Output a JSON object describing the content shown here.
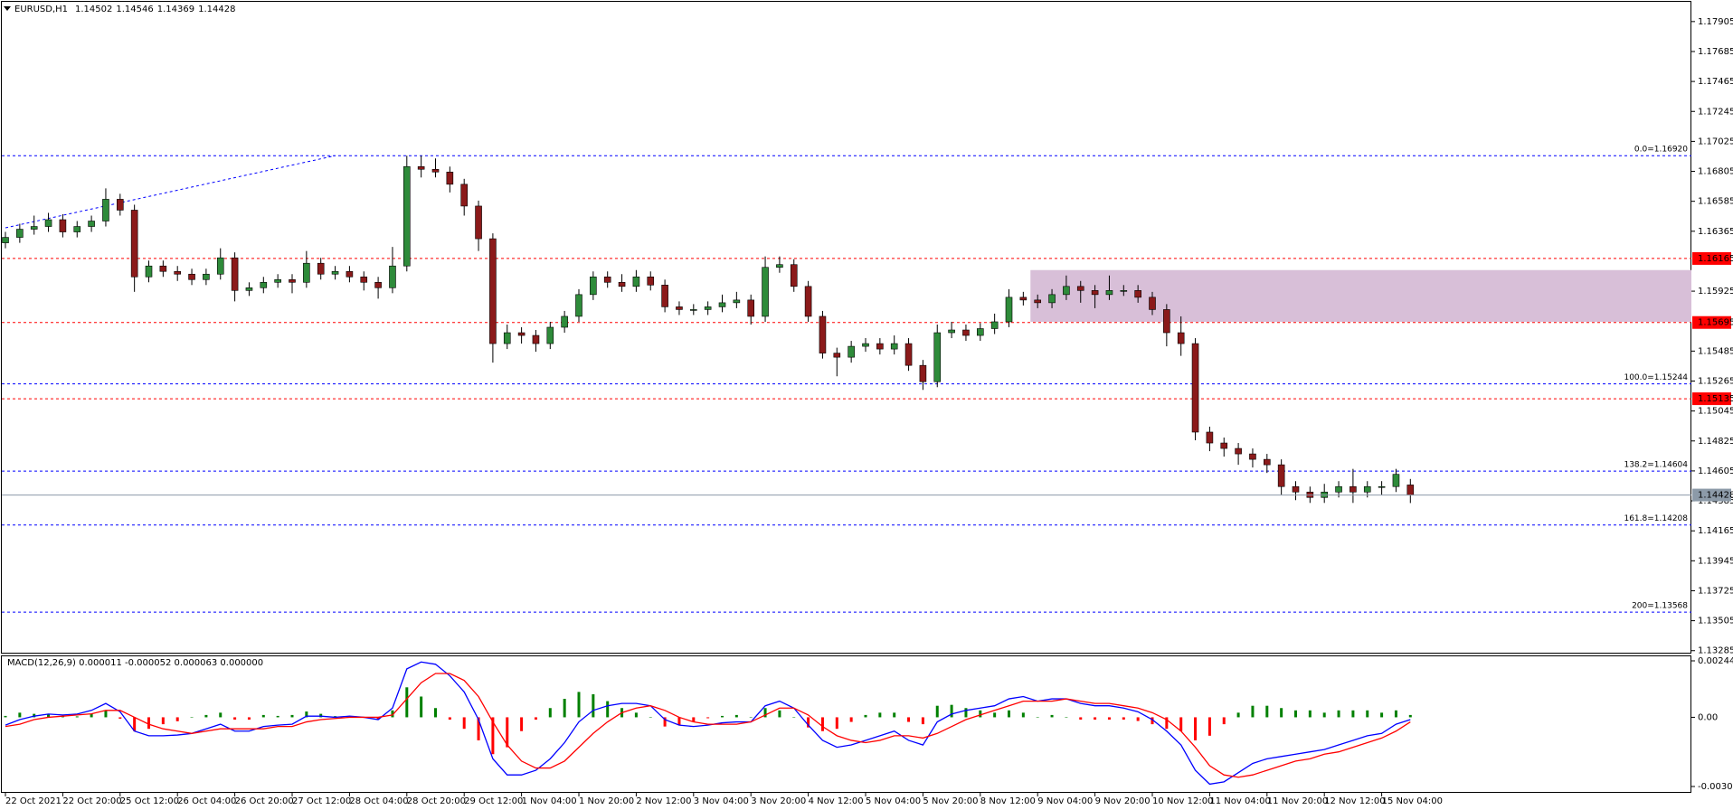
{
  "chart_data": [
    {
      "type": "candlestick",
      "symbol": "EURUSD,H1",
      "ylim": [
        1.1327,
        1.1805
      ],
      "yticks": [
        1.17905,
        1.17685,
        1.17465,
        1.17245,
        1.17025,
        1.16805,
        1.16585,
        1.16365,
        1.15925,
        1.15485,
        1.15265,
        1.15045,
        1.14825,
        1.14605,
        1.14385,
        1.14165,
        1.13945,
        1.13725,
        1.13505,
        1.13285
      ],
      "categories": [
        "22 Oct 2021",
        null,
        null,
        null,
        "22 Oct 20:00",
        null,
        null,
        null,
        "25 Oct 12:00",
        null,
        null,
        null,
        "26 Oct 04:00",
        null,
        null,
        null,
        "26 Oct 20:00",
        null,
        null,
        null,
        "27 Oct 12:00",
        null,
        null,
        null,
        "28 Oct 04:00",
        null,
        null,
        null,
        "28 Oct 20:00",
        null,
        null,
        null,
        "29 Oct 12:00",
        null,
        null,
        null,
        "1 Nov 04:00",
        null,
        null,
        null,
        "1 Nov 20:00",
        null,
        null,
        null,
        "2 Nov 12:00",
        null,
        null,
        null,
        "3 Nov 04:00",
        null,
        null,
        null,
        "3 Nov 20:00",
        null,
        null,
        null,
        "4 Nov 12:00",
        null,
        null,
        null,
        "5 Nov 04:00",
        null,
        null,
        null,
        "5 Nov 20:00",
        null,
        null,
        null,
        "8 Nov 12:00",
        null,
        null,
        null,
        "9 Nov 04:00",
        null,
        null,
        null,
        "9 Nov 20:00",
        null,
        null,
        null,
        "10 Nov 12:00",
        null,
        null,
        null,
        "11 Nov 04:00",
        null,
        null,
        null,
        "11 Nov 20:00",
        null,
        null,
        null,
        "12 Nov 12:00",
        null,
        null,
        null,
        "15 Nov 04:00",
        null,
        null
      ],
      "up_color": "#2e8b3a",
      "down_color": "#8b1a1a",
      "candles": [
        [
          1.1628,
          1.1636,
          1.1624,
          1.1632
        ],
        [
          1.1632,
          1.1642,
          1.1628,
          1.1638
        ],
        [
          1.1638,
          1.1648,
          1.1634,
          1.164
        ],
        [
          1.164,
          1.165,
          1.1636,
          1.1645
        ],
        [
          1.1645,
          1.1649,
          1.1632,
          1.1636
        ],
        [
          1.1636,
          1.1644,
          1.1632,
          1.164
        ],
        [
          1.164,
          1.1648,
          1.1636,
          1.1644
        ],
        [
          1.1644,
          1.1668,
          1.164,
          1.166
        ],
        [
          1.166,
          1.1664,
          1.1648,
          1.1652
        ],
        [
          1.1652,
          1.1656,
          1.1592,
          1.1603
        ],
        [
          1.1603,
          1.1615,
          1.1599,
          1.1611
        ],
        [
          1.1611,
          1.1615,
          1.1603,
          1.1607
        ],
        [
          1.1607,
          1.1611,
          1.16,
          1.1605
        ],
        [
          1.1605,
          1.1609,
          1.1597,
          1.1601
        ],
        [
          1.1601,
          1.1609,
          1.1597,
          1.1605
        ],
        [
          1.1605,
          1.1624,
          1.1601,
          1.1617
        ],
        [
          1.1617,
          1.1621,
          1.1585,
          1.1593
        ],
        [
          1.1593,
          1.1599,
          1.1589,
          1.1595
        ],
        [
          1.1595,
          1.1603,
          1.1591,
          1.1599
        ],
        [
          1.1599,
          1.1605,
          1.1595,
          1.1601
        ],
        [
          1.1601,
          1.1605,
          1.1591,
          1.1599
        ],
        [
          1.1599,
          1.1622,
          1.1595,
          1.1613
        ],
        [
          1.1613,
          1.1617,
          1.1601,
          1.1605
        ],
        [
          1.1605,
          1.1611,
          1.1601,
          1.1607
        ],
        [
          1.1607,
          1.1611,
          1.1599,
          1.1603
        ],
        [
          1.1603,
          1.1607,
          1.1593,
          1.1599
        ],
        [
          1.1599,
          1.1603,
          1.1587,
          1.1595
        ],
        [
          1.1595,
          1.1625,
          1.1591,
          1.1611
        ],
        [
          1.1611,
          1.1692,
          1.1607,
          1.1684
        ],
        [
          1.1684,
          1.1692,
          1.1676,
          1.1682
        ],
        [
          1.1682,
          1.169,
          1.1676,
          1.168
        ],
        [
          1.168,
          1.1684,
          1.1665,
          1.1671
        ],
        [
          1.1671,
          1.1675,
          1.1648,
          1.1655
        ],
        [
          1.1655,
          1.1659,
          1.1622,
          1.1631
        ],
        [
          1.1631,
          1.1635,
          1.154,
          1.1554
        ],
        [
          1.1554,
          1.1568,
          1.155,
          1.1562
        ],
        [
          1.1562,
          1.1566,
          1.1554,
          1.156
        ],
        [
          1.156,
          1.1564,
          1.1548,
          1.1554
        ],
        [
          1.1554,
          1.157,
          1.155,
          1.1566
        ],
        [
          1.1566,
          1.1578,
          1.1562,
          1.1574
        ],
        [
          1.1574,
          1.1594,
          1.157,
          1.159
        ],
        [
          1.159,
          1.1607,
          1.1586,
          1.1603
        ],
        [
          1.1603,
          1.1607,
          1.1595,
          1.1599
        ],
        [
          1.1599,
          1.1605,
          1.1592,
          1.1596
        ],
        [
          1.1596,
          1.1608,
          1.1592,
          1.1603
        ],
        [
          1.1603,
          1.1607,
          1.1593,
          1.1597
        ],
        [
          1.1597,
          1.1601,
          1.1577,
          1.1581
        ],
        [
          1.1581,
          1.1585,
          1.1575,
          1.1579
        ],
        [
          1.1579,
          1.1583,
          1.1575,
          1.1579
        ],
        [
          1.1579,
          1.1585,
          1.1575,
          1.1581
        ],
        [
          1.1581,
          1.159,
          1.1577,
          1.1584
        ],
        [
          1.1584,
          1.1592,
          1.158,
          1.1586
        ],
        [
          1.1586,
          1.159,
          1.1568,
          1.1574
        ],
        [
          1.1574,
          1.1618,
          1.157,
          1.161
        ],
        [
          1.161,
          1.1618,
          1.1606,
          1.1612
        ],
        [
          1.1612,
          1.1616,
          1.1592,
          1.1596
        ],
        [
          1.1596,
          1.16,
          1.157,
          1.1574
        ],
        [
          1.1574,
          1.1578,
          1.1543,
          1.1547
        ],
        [
          1.1547,
          1.1551,
          1.153,
          1.1544
        ],
        [
          1.1544,
          1.1556,
          1.154,
          1.1552
        ],
        [
          1.1552,
          1.1558,
          1.1548,
          1.1554
        ],
        [
          1.1554,
          1.1558,
          1.1546,
          1.155
        ],
        [
          1.155,
          1.156,
          1.1546,
          1.1554
        ],
        [
          1.1554,
          1.1558,
          1.1534,
          1.1538
        ],
        [
          1.1538,
          1.1542,
          1.152,
          1.1526
        ],
        [
          1.1526,
          1.1568,
          1.1522,
          1.1562
        ],
        [
          1.1562,
          1.157,
          1.1558,
          1.1564
        ],
        [
          1.1564,
          1.1568,
          1.1556,
          1.156
        ],
        [
          1.156,
          1.1569,
          1.1556,
          1.1565
        ],
        [
          1.1565,
          1.1576,
          1.1561,
          1.157
        ],
        [
          1.157,
          1.1594,
          1.1566,
          1.1588
        ],
        [
          1.1588,
          1.1592,
          1.1582,
          1.1586
        ],
        [
          1.1586,
          1.159,
          1.158,
          1.1584
        ],
        [
          1.1584,
          1.1594,
          1.158,
          1.159
        ],
        [
          1.159,
          1.1604,
          1.1586,
          1.1596
        ],
        [
          1.1596,
          1.16,
          1.1584,
          1.1593
        ],
        [
          1.1593,
          1.1597,
          1.158,
          1.159
        ],
        [
          1.159,
          1.1604,
          1.1586,
          1.1593
        ],
        [
          1.1593,
          1.1597,
          1.1589,
          1.1593
        ],
        [
          1.1593,
          1.1597,
          1.1584,
          1.1588
        ],
        [
          1.1588,
          1.1592,
          1.1575,
          1.1579
        ],
        [
          1.1579,
          1.1583,
          1.1552,
          1.1562
        ],
        [
          1.1562,
          1.1574,
          1.1545,
          1.1554
        ],
        [
          1.1554,
          1.1558,
          1.1483,
          1.1489
        ],
        [
          1.1489,
          1.1493,
          1.1475,
          1.1481
        ],
        [
          1.1481,
          1.1485,
          1.1471,
          1.1477
        ],
        [
          1.1477,
          1.1481,
          1.1465,
          1.1473
        ],
        [
          1.1473,
          1.1477,
          1.1463,
          1.1469
        ],
        [
          1.1469,
          1.1473,
          1.1459,
          1.1465
        ],
        [
          1.1465,
          1.1469,
          1.1443,
          1.1449
        ],
        [
          1.1449,
          1.1453,
          1.1439,
          1.1445
        ],
        [
          1.1445,
          1.1449,
          1.1437,
          1.1441
        ],
        [
          1.1441,
          1.1451,
          1.1437,
          1.1445
        ],
        [
          1.1445,
          1.1453,
          1.1441,
          1.1449
        ],
        [
          1.1449,
          1.1462,
          1.1437,
          1.1445
        ],
        [
          1.1445,
          1.1453,
          1.1441,
          1.1449
        ],
        [
          1.1449,
          1.1453,
          1.1443,
          1.1449
        ],
        [
          1.1449,
          1.1462,
          1.1445,
          1.1458
        ],
        [
          1.14502,
          1.14546,
          1.14369,
          1.14428
        ]
      ],
      "fib_color": "#0000ff",
      "fib_levels": [
        {
          "value": 1.1692,
          "label": "0.0=1.16920"
        },
        {
          "value": 1.15244,
          "label": "100.0=1.15244"
        },
        {
          "value": 1.14604,
          "label": "138.2=1.14604"
        },
        {
          "value": 1.14208,
          "label": "161.8=1.14208"
        },
        {
          "value": 1.13568,
          "label": "200=1.13568"
        }
      ],
      "sr_color": "#ff0000",
      "sr_levels": [
        1.16165,
        1.15695,
        1.15135
      ],
      "current_color": "#8c9aa8",
      "trendline": {
        "start": [
          0,
          1.1639
        ],
        "end": [
          23,
          1.1692
        ],
        "color": "#0000ff"
      },
      "zone": {
        "from_index": 72,
        "low": 1.157,
        "high": 1.1608,
        "color": "#d8bfd8"
      }
    },
    {
      "type": "macd",
      "title": "MACD(12,26,9) 0.000011 -0.000052 0.000063 0.000000",
      "ylim": [
        -0.003002,
        0.002449
      ],
      "yticks": [
        0.002449,
        {
          "value": 0,
          "label": "0.00"
        },
        -0.003002
      ],
      "series": [
        {
          "color": "#0000ff",
          "values": [
            -0.00034,
            -0.0001,
            5e-05,
            0.00014,
            0.0001,
            0.00014,
            0.0003,
            0.0006,
            0.00024,
            -0.0006,
            -0.0008,
            -0.0008,
            -0.00077,
            -0.0007,
            -0.0005,
            -0.0003,
            -0.0006,
            -0.0006,
            -0.0004,
            -0.00034,
            -0.0003,
            5e-05,
            5e-05,
            0,
            5e-05,
            0,
            -0.0001,
            0.0004,
            0.0021,
            0.0024,
            0.0023,
            0.0018,
            0.0011,
            -0.0001,
            -0.0018,
            -0.0025,
            -0.0025,
            -0.0023,
            -0.0018,
            -0.0011,
            -0.0002,
            0.0003,
            0.0005,
            0.0006,
            0.0006,
            0.0005,
            -0.0001,
            -0.00034,
            -0.0004,
            -0.00034,
            -0.00024,
            -0.0002,
            -0.0002,
            0.0005,
            0.0007,
            0.0004,
            -0.00034,
            -0.001,
            -0.0013,
            -0.0012,
            -0.001,
            -0.0008,
            -0.0006,
            -0.001,
            -0.0012,
            -0.0002,
            0.00014,
            0.0003,
            0.0004,
            0.0005,
            0.0008,
            0.0009,
            0.0007,
            0.0008,
            0.0008,
            0.0006,
            0.0005,
            0.0005,
            0.0004,
            0.00024,
            -0.0001,
            -0.0006,
            -0.0012,
            -0.0023,
            -0.0029,
            -0.0028,
            -0.0024,
            -0.002,
            -0.0018,
            -0.0017,
            -0.0016,
            -0.0015,
            -0.0014,
            -0.0012,
            -0.001,
            -0.0008,
            -0.0007,
            -0.0003,
            -0.0001
          ]
        },
        {
          "color": "#ff0000",
          "values": [
            -0.0004,
            -0.0003,
            -0.0001,
            0,
            5e-05,
            0.0001,
            0.00015,
            0.0003,
            0.0003,
            0,
            -0.0003,
            -0.0005,
            -0.0006,
            -0.0007,
            -0.0006,
            -0.0005,
            -0.0005,
            -0.0005,
            -0.0005,
            -0.0004,
            -0.0004,
            -0.0002,
            -0.0001,
            -5e-05,
            0,
            0,
            0,
            0.0001,
            0.0008,
            0.0015,
            0.0019,
            0.0019,
            0.0016,
            0.0009,
            -0.0002,
            -0.0012,
            -0.0019,
            -0.0022,
            -0.0022,
            -0.0019,
            -0.0013,
            -0.0007,
            -0.0002,
            0.0002,
            0.0004,
            0.0005,
            0.0003,
            0,
            -0.0002,
            -0.0003,
            -0.0003,
            -0.0003,
            -0.0002,
            0.0001,
            0.0004,
            0.0004,
            0.0001,
            -0.0004,
            -0.0008,
            -0.001,
            -0.0011,
            -0.001,
            -0.0008,
            -0.0008,
            -0.0009,
            -0.0007,
            -0.0004,
            -0.0001,
            0.0001,
            0.0003,
            0.0005,
            0.0007,
            0.0007,
            0.0007,
            0.0008,
            0.0007,
            0.0006,
            0.0006,
            0.0005,
            0.0004,
            0.0002,
            -0.0001,
            -0.0006,
            -0.0013,
            -0.0021,
            -0.0025,
            -0.0026,
            -0.0025,
            -0.0023,
            -0.0021,
            -0.0019,
            -0.0018,
            -0.0016,
            -0.0015,
            -0.0013,
            -0.0011,
            -0.0009,
            -0.0006,
            -0.0002
          ]
        }
      ],
      "histogram": {
        "up_color": "#008000",
        "down_color": "#ff0000",
        "values": [
          6e-05,
          0.0002,
          0.00015,
          0.00014,
          5e-05,
          4e-05,
          0.00015,
          0.0003,
          -6e-05,
          -0.0006,
          -0.0005,
          -0.0003,
          -0.00017,
          0,
          0.0001,
          0.0002,
          -0.0001,
          -0.0001,
          0.0001,
          6e-05,
          0.0001,
          0.00025,
          0.00015,
          5e-05,
          5e-05,
          0,
          -0.0001,
          0.0003,
          0.0013,
          0.0009,
          0.0004,
          -0.0001,
          -0.0005,
          -0.001,
          -0.0016,
          -0.0013,
          -0.0006,
          -0.0001,
          0.0004,
          0.0008,
          0.0011,
          0.001,
          0.0007,
          0.0004,
          0.0002,
          0,
          -0.0004,
          -0.00034,
          -0.0002,
          -4e-05,
          6e-05,
          0.0001,
          0,
          0.0004,
          0.0003,
          0,
          -0.00044,
          -0.0006,
          -0.0005,
          -0.0002,
          0.0001,
          0.0002,
          0.0002,
          -0.0002,
          -0.0003,
          0.0005,
          0.00054,
          0.0004,
          0.0003,
          0.0002,
          0.0003,
          0.0002,
          0,
          0.0001,
          0,
          -0.0001,
          -0.0001,
          -0.0001,
          -0.0001,
          -0.00016,
          -0.0003,
          -0.0005,
          -0.0006,
          -0.001,
          -0.0008,
          -0.0003,
          0.0002,
          0.0005,
          0.0005,
          0.0004,
          0.0003,
          0.0003,
          0.0002,
          0.0003,
          0.0003,
          0.0003,
          0.0002,
          0.0003,
          0.0001
        ]
      }
    }
  ]
}
